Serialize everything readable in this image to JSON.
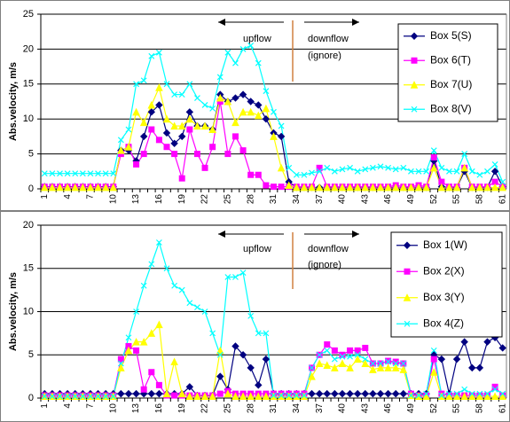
{
  "chart_data": [
    {
      "type": "line",
      "y_label": "Abs.velocity, m/s",
      "grid": true,
      "legend": "upper right",
      "annotations": [
        "upflow",
        "downflow",
        "(ignore)"
      ],
      "categories": [
        "1",
        null,
        null,
        "4",
        null,
        null,
        "7",
        null,
        null,
        "10",
        null,
        null,
        "13",
        null,
        null,
        "16",
        null,
        null,
        "19",
        null,
        null,
        "22",
        null,
        null,
        "25",
        null,
        null,
        "28",
        null,
        null,
        "31",
        null,
        null,
        "34",
        null,
        null,
        "37",
        null,
        null,
        "40",
        null,
        null,
        "43",
        null,
        null,
        "46",
        null,
        null,
        "49",
        null,
        null,
        "52",
        null,
        null,
        "55",
        null,
        null,
        "58",
        null,
        null,
        "61"
      ],
      "ylim": [
        0,
        25
      ],
      "yticks": [
        0,
        5,
        10,
        15,
        20,
        25
      ],
      "series": [
        {
          "name": "Box 5(S)",
          "color": "#000080",
          "marker": "diamond",
          "values": [
            0.3,
            0.3,
            0.3,
            0.3,
            0.3,
            0.3,
            0.3,
            0.3,
            0.3,
            0.3,
            5.5,
            5.5,
            4,
            7.5,
            11,
            12,
            8,
            6.5,
            7.5,
            11,
            9,
            9,
            8.5,
            13.5,
            12.5,
            13,
            13.5,
            12.5,
            12,
            10,
            8,
            7.5,
            1,
            0.2,
            0.2,
            0.2,
            0.2,
            0.2,
            0.2,
            0.2,
            0.2,
            0.2,
            0.2,
            0.2,
            0.2,
            0.2,
            0.2,
            0.2,
            0.2,
            0.2,
            0.2,
            4,
            0.3,
            0.2,
            0.2,
            2.5,
            0.2,
            0.2,
            0.2,
            2.5,
            0.3
          ]
        },
        {
          "name": "Box 6(T)",
          "color": "#ff00ff",
          "marker": "square",
          "values": [
            0.3,
            0.3,
            0.3,
            0.3,
            0.3,
            0.3,
            0.3,
            0.3,
            0.3,
            0.3,
            5,
            6,
            3.5,
            5,
            8.5,
            7,
            6,
            5,
            1.5,
            8.5,
            5,
            3,
            6,
            12.5,
            5,
            7.5,
            5.5,
            2,
            2,
            0.5,
            0.3,
            0.3,
            0.3,
            0.3,
            0.3,
            0.3,
            3,
            0.3,
            0.3,
            0.3,
            0.3,
            0.3,
            0.3,
            0.3,
            0.3,
            0.3,
            0.5,
            0.3,
            0.3,
            0.5,
            0.3,
            4.5,
            1,
            0.3,
            0.3,
            3,
            0.3,
            0.3,
            0.3,
            1,
            0.3
          ]
        },
        {
          "name": "Box 7(U)",
          "color": "#ffff00",
          "marker": "triangle",
          "values": [
            0.2,
            0.2,
            0.2,
            0.2,
            0.2,
            0.2,
            0.2,
            0.2,
            0.2,
            0.2,
            5.5,
            6,
            11,
            9.5,
            12,
            14.5,
            10,
            9,
            9,
            10,
            9,
            9,
            8.5,
            13,
            12.5,
            9.5,
            11,
            11,
            10.5,
            11.5,
            7.5,
            3,
            0.5,
            0.2,
            0.2,
            0.2,
            0.2,
            0.2,
            0.2,
            0.2,
            0.2,
            0.2,
            0.2,
            0.2,
            0.2,
            0.2,
            0.2,
            0.2,
            0.2,
            0.2,
            0.2,
            3,
            0.2,
            0.2,
            0.2,
            3,
            0.2,
            0.2,
            0.2,
            0.2,
            0.2
          ]
        },
        {
          "name": "Box 8(V)",
          "color": "#00ffff",
          "marker": "x",
          "values": [
            2.2,
            2.2,
            2.2,
            2.2,
            2.2,
            2.2,
            2.2,
            2.2,
            2.2,
            2.2,
            7,
            8.5,
            15,
            15.5,
            19,
            19.5,
            15,
            13.5,
            13.5,
            15,
            13,
            12,
            11.5,
            16,
            19.5,
            18,
            20,
            20.5,
            18,
            14,
            11,
            9,
            3,
            2,
            2,
            2.3,
            2.5,
            3,
            2.5,
            2.8,
            3,
            2.5,
            2.8,
            3,
            3.2,
            3,
            2.8,
            3,
            2.5,
            2.5,
            2.5,
            5.5,
            3,
            2.5,
            2.5,
            5,
            2.5,
            2,
            2.5,
            3.5,
            1
          ]
        }
      ]
    },
    {
      "type": "line",
      "y_label": "Abs.velocity, m/s",
      "grid": true,
      "legend": "upper right",
      "annotations": [
        "upflow",
        "downflow",
        "(ignore)"
      ],
      "categories": [
        "1",
        null,
        null,
        "4",
        null,
        null,
        "7",
        null,
        null,
        "10",
        null,
        null,
        "13",
        null,
        null,
        "16",
        null,
        null,
        "19",
        null,
        null,
        "22",
        null,
        null,
        "25",
        null,
        null,
        "28",
        null,
        null,
        "31",
        null,
        null,
        "34",
        null,
        null,
        "37",
        null,
        null,
        "40",
        null,
        null,
        "43",
        null,
        null,
        "46",
        null,
        null,
        "49",
        null,
        null,
        "52",
        null,
        null,
        "55",
        null,
        null,
        "58",
        null,
        null,
        "61"
      ],
      "ylim": [
        0,
        20
      ],
      "yticks": [
        0,
        5,
        10,
        15,
        20
      ],
      "series": [
        {
          "name": "Box 1(W)",
          "color": "#000080",
          "marker": "diamond",
          "values": [
            0.5,
            0.5,
            0.5,
            0.5,
            0.5,
            0.5,
            0.5,
            0.5,
            0.5,
            0.5,
            0.5,
            0.5,
            0.5,
            0.5,
            0.5,
            0.5,
            0.5,
            0.5,
            0.5,
            1.3,
            0.3,
            0.3,
            0.3,
            2.5,
            1,
            6,
            5,
            3.5,
            1.5,
            4.5,
            0.5,
            0.5,
            0.5,
            0.5,
            0.5,
            0.5,
            0.5,
            0.5,
            0.5,
            0.5,
            0.5,
            0.5,
            0.5,
            0.5,
            0.5,
            0.5,
            0.5,
            0.5,
            0.5,
            0.5,
            0.5,
            5,
            4.5,
            0.5,
            4.5,
            6.5,
            3.5,
            3.5,
            6.5,
            7,
            5.8
          ]
        },
        {
          "name": "Box 2(X)",
          "color": "#ff00ff",
          "marker": "square",
          "values": [
            0.3,
            0.3,
            0.3,
            0.3,
            0.3,
            0.3,
            0.3,
            0.3,
            0.3,
            0.3,
            4.5,
            6,
            5.5,
            1,
            3,
            1.5,
            0.3,
            0.3,
            0.3,
            0.3,
            0.3,
            0.3,
            0.3,
            0.5,
            0.8,
            0.5,
            0.5,
            0.5,
            0.5,
            0.5,
            0.5,
            0.5,
            0.5,
            0.5,
            0.5,
            3.5,
            5,
            6.2,
            5.5,
            5,
            5.5,
            5.5,
            5.8,
            4,
            4,
            4.3,
            4.2,
            4,
            0.5,
            0.3,
            0.3,
            4.5,
            0.5,
            0.3,
            0.3,
            0.3,
            0.3,
            0.3,
            0.3,
            1.3,
            0.3
          ]
        },
        {
          "name": "Box 3(Y)",
          "color": "#ffff00",
          "marker": "triangle",
          "values": [
            0.2,
            0.2,
            0.2,
            0.2,
            0.2,
            0.2,
            0.2,
            0.2,
            0.2,
            0.2,
            3.5,
            5.5,
            6.5,
            6.5,
            7.5,
            8.5,
            0.5,
            4.2,
            0.5,
            0.2,
            0.2,
            0.2,
            0.2,
            5.5,
            0.5,
            0.2,
            0.2,
            0.2,
            0.2,
            0.2,
            0.2,
            0.2,
            0.2,
            0.2,
            0.2,
            2.5,
            4,
            3.8,
            3.5,
            4,
            3.5,
            4.5,
            4,
            3.3,
            3.5,
            3.5,
            3.5,
            3.3,
            0.3,
            0.2,
            0.2,
            3,
            0.2,
            0.2,
            0.2,
            0.2,
            0.2,
            0.2,
            0.2,
            0.2,
            0.2
          ]
        },
        {
          "name": "Box 4(Z)",
          "color": "#00ffff",
          "marker": "x",
          "values": [
            0.2,
            0.2,
            0.2,
            0.2,
            0.2,
            0.2,
            0.2,
            0.2,
            0.2,
            0.2,
            4,
            7,
            10,
            13,
            15.5,
            18,
            15,
            13,
            12.5,
            11,
            10.5,
            10,
            7.5,
            5,
            14,
            14,
            14.5,
            9.5,
            7.5,
            7.5,
            0.3,
            0.3,
            0.3,
            0.3,
            0.3,
            3.5,
            5,
            5.5,
            4.5,
            4.8,
            4.8,
            5,
            4.5,
            4,
            4,
            4.2,
            4,
            4,
            0.3,
            0.3,
            0.5,
            5.5,
            0.3,
            0.5,
            0.5,
            1,
            0.5,
            0.5,
            0.5,
            1,
            0.5
          ]
        }
      ]
    }
  ]
}
